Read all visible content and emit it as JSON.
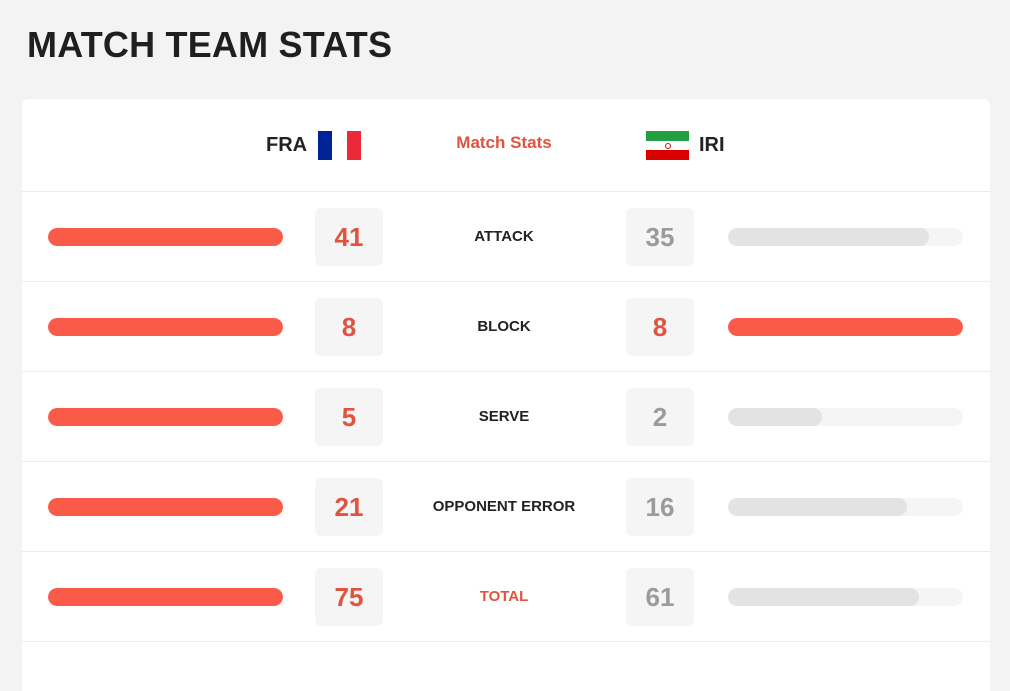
{
  "page": {
    "title": "MATCH TEAM STATS"
  },
  "header": {
    "label": "Match Stats",
    "home": {
      "code": "FRA",
      "flag": "france-flag-icon"
    },
    "away": {
      "code": "IRI",
      "flag": "iran-flag-icon"
    }
  },
  "colors": {
    "accent": "#fa5a48",
    "accent_text": "#e2533f",
    "muted_bar": "#e3e3e3",
    "muted_text": "#9b9b9b"
  },
  "stats": [
    {
      "label": "ATTACK",
      "home": 41,
      "away": 35
    },
    {
      "label": "BLOCK",
      "home": 8,
      "away": 8
    },
    {
      "label": "SERVE",
      "home": 5,
      "away": 2
    },
    {
      "label": "OPPONENT ERROR",
      "home": 21,
      "away": 16
    },
    {
      "label": "TOTAL",
      "home": 75,
      "away": 61,
      "highlight": true
    }
  ]
}
